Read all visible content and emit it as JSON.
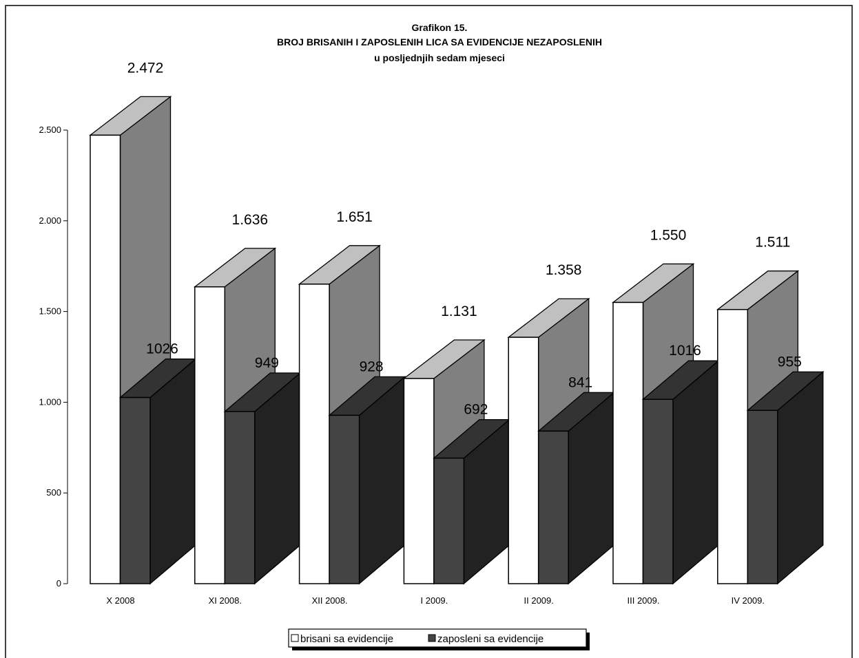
{
  "chart_data": {
    "type": "bar",
    "title": "Grafikon 15.",
    "subtitle": "BROJ BRISANIH I ZAPOSLENIH LICA SA EVIDENCIJE NEZAPOSLENIH",
    "subtitle2": "u posljednjih sedam mjeseci",
    "categories": [
      "X 2008",
      "XI 2008.",
      "XII 2008.",
      "I 2009.",
      "II 2009.",
      "III 2009.",
      "IV 2009."
    ],
    "series": [
      {
        "name": "brisani sa evidencije",
        "values": [
          2472,
          1636,
          1651,
          1131,
          1358,
          1550,
          1511
        ],
        "labels": [
          "2.472",
          "1.636",
          "1.651",
          "1.131",
          "1.358",
          "1.550",
          "1.511"
        ],
        "front_color": "#ffffff",
        "top_color": "#c0c0c0",
        "side_color": "#808080"
      },
      {
        "name": "zaposleni sa evidencije",
        "values": [
          1026,
          949,
          928,
          692,
          841,
          1016,
          955
        ],
        "labels": [
          "1026",
          "949",
          "928",
          "692",
          "841",
          "1016",
          "955"
        ],
        "front_color": "#444444",
        "top_color": "#333333",
        "side_color": "#222222"
      }
    ],
    "yticks": [
      0,
      500,
      1000,
      1500,
      2000,
      2500
    ],
    "ytick_labels": [
      "0",
      "500",
      "1.000",
      "1.500",
      "2.000",
      "2.500"
    ],
    "ylim": [
      0,
      2500
    ],
    "xlabel": "",
    "ylabel": "",
    "grid": false,
    "three_d": true,
    "legend_position": "bottom-center"
  }
}
